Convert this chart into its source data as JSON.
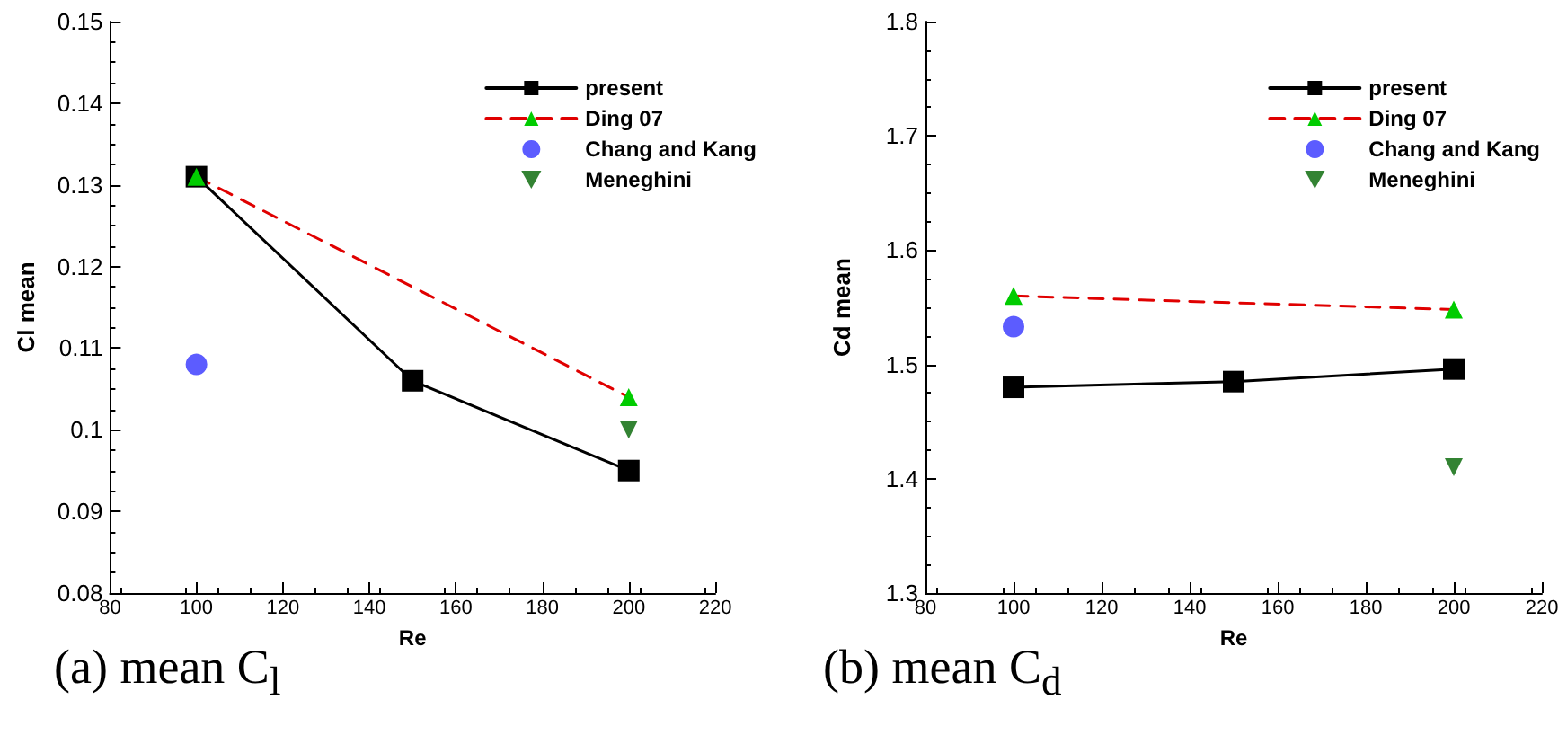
{
  "chart_data": [
    {
      "type": "line",
      "title": "(a) mean C$_{l}$",
      "xlabel": "Re",
      "ylabel": "Cl mean",
      "xlim": [
        80,
        220
      ],
      "xticks": [
        80,
        100,
        120,
        140,
        160,
        180,
        200,
        220
      ],
      "ylim": [
        0.08,
        0.15
      ],
      "yticks": [
        0.08,
        0.09,
        0.1,
        0.11,
        0.12,
        0.13,
        0.14,
        0.15
      ],
      "legend": "top right",
      "grid": false,
      "series": [
        {
          "name": "present",
          "color": "#000000",
          "marker": "square",
          "line_style": "solid",
          "x": [
            100,
            150,
            200
          ],
          "values": [
            0.131,
            0.106,
            0.095
          ]
        },
        {
          "name": "Ding 07",
          "color": "#e00000",
          "colors": [
            "#00cc00",
            "#00cc00"
          ],
          "marker": "triangle",
          "line_style": "dashed",
          "x": [
            100,
            200
          ],
          "values": [
            0.131,
            0.104
          ]
        },
        {
          "name": "Chang and Kang",
          "type": "scatter",
          "color": "#3333ff",
          "marker": "circle",
          "x": [
            100
          ],
          "values": [
            0.108
          ]
        },
        {
          "name": "Meneghini",
          "type": "scatter",
          "color": "#006400",
          "marker": "triangle-down",
          "x": [
            200
          ],
          "values": [
            0.1
          ]
        }
      ]
    },
    {
      "type": "line",
      "title": "(b) mean C$_{d}$",
      "xlabel": "Re",
      "ylabel": "Cd mean",
      "xlim": [
        80,
        220
      ],
      "xticks": [
        80,
        100,
        120,
        140,
        160,
        180,
        200,
        220
      ],
      "ylim": [
        1.3,
        1.8
      ],
      "yticks": [
        1.3,
        1.4,
        1.5,
        1.6,
        1.7,
        1.8
      ],
      "legend": "top right",
      "grid": false,
      "series": [
        {
          "name": "present",
          "color": "#000000",
          "marker": "square",
          "line_style": "solid",
          "x": [
            100,
            150,
            200
          ],
          "values": [
            1.48,
            1.485,
            1.496
          ]
        },
        {
          "name": "Ding 07",
          "color": "#e00000",
          "colors": [
            "#00cc00",
            "#00cc00"
          ],
          "marker": "triangle",
          "line_style": "dashed",
          "x": [
            100,
            200
          ],
          "values": [
            1.56,
            1.548
          ]
        },
        {
          "name": "Chang and Kang",
          "type": "scatter",
          "color": "#3333ff",
          "marker": "circle",
          "x": [
            100
          ],
          "values": [
            1.533
          ]
        },
        {
          "name": "Meneghini",
          "type": "scatter",
          "color": "#006400",
          "marker": "triangle-down",
          "x": [
            200
          ],
          "values": [
            1.41
          ]
        }
      ]
    }
  ]
}
